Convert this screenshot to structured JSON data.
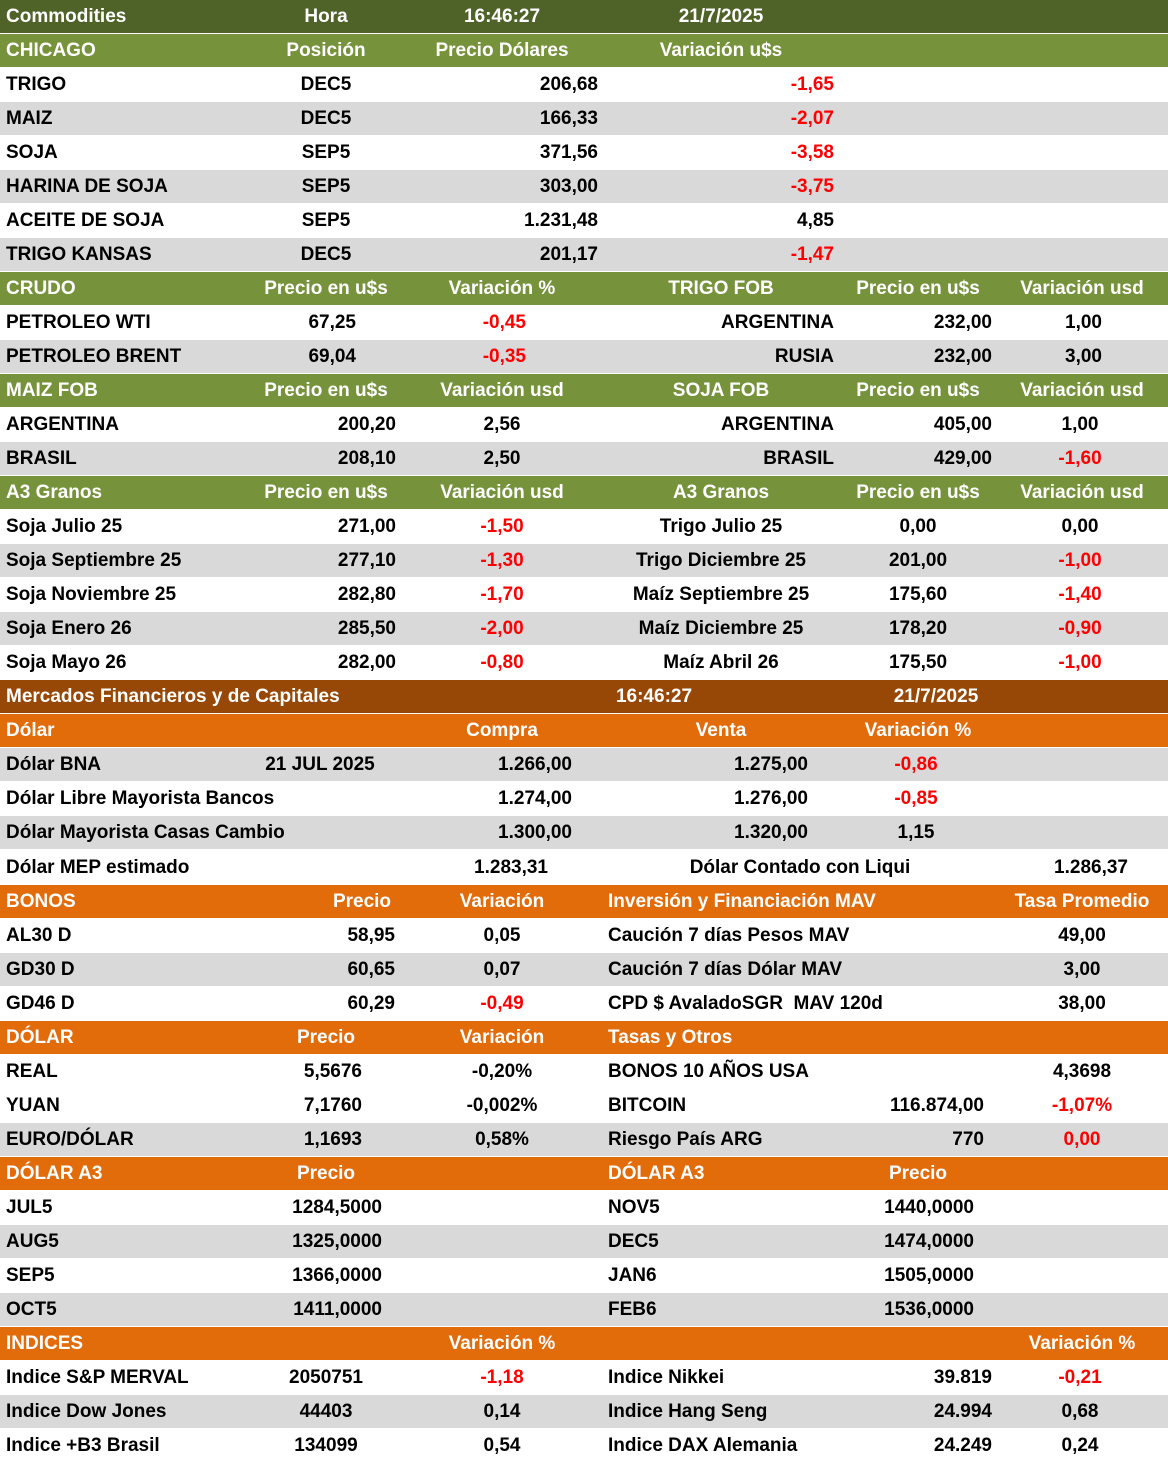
{
  "rows": [
    [
      "Commodities",
      "Hora",
      "16:46:27",
      "21/7/2025"
    ],
    [
      "CHICAGO",
      "Posición",
      "Precio Dólares",
      "Variación u$s"
    ],
    [
      "TRIGO",
      "DEC5",
      "206,68",
      {
        "text": "-1,65",
        "color": "#ff0000"
      }
    ],
    [
      "MAIZ",
      "DEC5",
      "166,33",
      {
        "text": "-2,07",
        "color": "#ff0000"
      }
    ],
    [
      "SOJA",
      "SEP5",
      "371,56",
      {
        "text": "-3,58",
        "color": "#ff0000"
      }
    ],
    [
      "HARINA DE SOJA",
      "SEP5",
      "303,00",
      {
        "text": "-3,75",
        "color": "#ff0000"
      }
    ],
    [
      "ACEITE DE SOJA",
      "SEP5",
      "1.231,48",
      "4,85"
    ],
    [
      "TRIGO KANSAS",
      "DEC5",
      "201,17",
      {
        "text": "-1,47",
        "color": "#ff0000"
      }
    ],
    [
      "CRUDO",
      "Precio en u$s",
      "Variación %",
      "TRIGO FOB",
      "Precio en u$s",
      "Variación usd"
    ],
    [
      "PETROLEO WTI",
      "67,25",
      {
        "text": "-0,45",
        "color": "#ff0000"
      },
      "ARGENTINA",
      "232,00",
      "1,00"
    ],
    [
      "PETROLEO BRENT",
      "69,04",
      {
        "text": "-0,35",
        "color": "#ff0000"
      },
      "RUSIA",
      "232,00",
      "3,00"
    ],
    [
      "MAIZ FOB",
      "Precio en u$s",
      "Variación usd",
      "SOJA FOB",
      "Precio en u$s",
      "Variación usd"
    ],
    [
      "ARGENTINA",
      "200,20",
      "2,56",
      "ARGENTINA",
      "405,00",
      "1,00"
    ],
    [
      "BRASIL",
      "208,10",
      "2,50",
      "BRASIL",
      "429,00",
      {
        "text": "-1,60",
        "color": "#ff0000"
      }
    ],
    [
      "A3 Granos",
      "Precio en u$s",
      "Variación usd",
      "A3 Granos",
      "Precio en u$s",
      "Variación usd"
    ],
    [
      "Soja Julio 25",
      "271,00",
      {
        "text": "-1,50",
        "color": "#ff0000"
      },
      "Trigo Julio 25",
      "0,00",
      "0,00"
    ],
    [
      "Soja Septiembre 25",
      "277,10",
      {
        "text": "-1,30",
        "color": "#ff0000"
      },
      "Trigo Diciembre 25",
      "201,00",
      {
        "text": "-1,00",
        "color": "#ff0000"
      }
    ],
    [
      "Soja Noviembre 25",
      "282,80",
      {
        "text": "-1,70",
        "color": "#ff0000"
      },
      "Maíz Septiembre 25",
      "175,60",
      {
        "text": "-1,40",
        "color": "#ff0000"
      }
    ],
    [
      "Soja Enero 26",
      "285,50",
      {
        "text": "-2,00",
        "color": "#ff0000"
      },
      "Maíz Diciembre 25",
      "178,20",
      {
        "text": "-0,90",
        "color": "#ff0000"
      }
    ],
    [
      "Soja Mayo 26",
      "282,00",
      {
        "text": "-0,80",
        "color": "#ff0000"
      },
      "Maíz Abril 26",
      "175,50",
      {
        "text": "-1,00",
        "color": "#ff0000"
      }
    ],
    [
      "Mercados Financieros y de Capitales",
      "16:46:27",
      "21/7/2025"
    ],
    [
      "Dólar",
      "Compra",
      "Venta",
      "Variación %"
    ],
    [
      "Dólar BNA",
      "21 JUL 2025",
      "1.266,00",
      "1.275,00",
      {
        "text": "-0,86",
        "color": "#ff0000"
      }
    ],
    [
      "Dólar Libre Mayorista Bancos",
      "1.274,00",
      "1.276,00",
      {
        "text": "-0,85",
        "color": "#ff0000"
      }
    ],
    [
      "Dólar Mayorista Casas Cambio",
      "1.300,00",
      "1.320,00",
      "1,15"
    ],
    [
      "Dólar MEP estimado",
      "1.283,31",
      "Dólar Contado con Liqui",
      "1.286,37"
    ],
    [
      "BONOS",
      "Precio",
      "Variación",
      "Inversión y Financiación MAV",
      "Tasa Promedio"
    ],
    [
      "AL30 D",
      "58,95",
      "0,05",
      "Caución 7 días Pesos MAV",
      "49,00"
    ],
    [
      "GD30 D",
      "60,65",
      "0,07",
      "Caución 7 días Dólar MAV",
      "3,00"
    ],
    [
      "GD46 D",
      "60,29",
      {
        "text": "-0,49",
        "color": "#ff0000"
      },
      "CPD $ AvaladoSGR  MAV 120d",
      "38,00"
    ],
    [
      "DÓLAR",
      "Precio",
      "Variación",
      "Tasas y Otros"
    ],
    [
      "REAL",
      "5,5676",
      "-0,20%",
      "BONOS 10 AÑOS USA",
      "4,3698"
    ],
    [
      "YUAN",
      "7,1760",
      "-0,002%",
      "BITCOIN",
      "116.874,00",
      {
        "text": "-1,07%",
        "color": "#ff0000"
      }
    ],
    [
      "EURO/DÓLAR",
      "1,1693",
      "0,58%",
      "Riesgo País ARG",
      "770",
      {
        "text": "0,00",
        "color": "#ff0000"
      }
    ],
    [
      "DÓLAR A3",
      "Precio",
      "DÓLAR A3",
      "Precio"
    ],
    [
      "JUL5",
      "1284,5000",
      "NOV5",
      "1440,0000"
    ],
    [
      "AUG5",
      "1325,0000",
      "DEC5",
      "1474,0000"
    ],
    [
      "SEP5",
      "1366,0000",
      "JAN6",
      "1505,0000"
    ],
    [
      "OCT5",
      "1411,0000",
      "FEB6",
      "1536,0000"
    ],
    [
      "INDICES",
      "Variación %",
      "Variación %"
    ],
    [
      "Indice S&P MERVAL",
      "2050751",
      {
        "text": "-1,18",
        "color": "#ff0000"
      },
      "Indice Nikkei",
      "39.819",
      {
        "text": "-0,21",
        "color": "#ff0000"
      }
    ],
    [
      "Indice Dow Jones",
      "44403",
      "0,14",
      "Indice Hang Seng",
      "24.994",
      "0,68"
    ],
    [
      "Indice +B3 Brasil",
      "134099",
      "0,54",
      "Indice DAX Alemania",
      "24.249",
      "0,24"
    ]
  ]
}
